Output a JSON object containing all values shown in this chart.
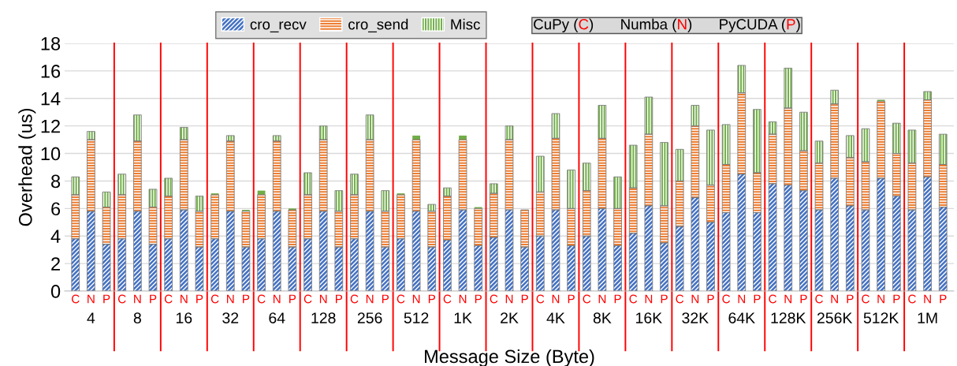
{
  "chart_data": {
    "type": "bar",
    "stacked": true,
    "xlabel": "Message Size (Byte)",
    "ylabel": "Overhead (us)",
    "categories": [
      "C",
      "N",
      "P",
      "C",
      "N",
      "P",
      "C",
      "N",
      "P",
      "C",
      "N",
      "P",
      "C",
      "N",
      "P",
      "C",
      "N",
      "P",
      "C",
      "N",
      "P",
      "C",
      "N",
      "P",
      "C",
      "N",
      "P",
      "C",
      "N",
      "P",
      "C",
      "N",
      "P",
      "C",
      "N",
      "P",
      "C",
      "N",
      "P",
      "C",
      "N",
      "P",
      "C",
      "N",
      "P",
      "C",
      "N",
      "P",
      "C",
      "N",
      "P",
      "C",
      "N",
      "P",
      "C",
      "N",
      "P"
    ],
    "series": [
      {
        "name": "cro_recv",
        "color": "#4472c4",
        "values": [
          3.8,
          5.8,
          3.4,
          3.8,
          5.8,
          3.4,
          3.8,
          5.9,
          3.2,
          3.8,
          5.8,
          3.2,
          3.8,
          5.8,
          3.2,
          3.8,
          5.8,
          3.2,
          3.8,
          5.8,
          3.2,
          3.8,
          5.8,
          3.2,
          3.7,
          5.9,
          3.3,
          3.9,
          5.9,
          3.2,
          4.0,
          5.9,
          3.3,
          4.0,
          6.0,
          3.3,
          4.2,
          6.2,
          3.5,
          4.7,
          6.8,
          5.0,
          5.7,
          8.5,
          5.7,
          7.8,
          7.7,
          7.3,
          5.9,
          8.2,
          6.2,
          5.9,
          8.2,
          6.9,
          5.9,
          8.3,
          6.1
        ]
      },
      {
        "name": "cro_send",
        "color": "#ed7d31",
        "values": [
          3.2,
          5.2,
          2.7,
          3.2,
          5.1,
          2.7,
          3.1,
          5.1,
          2.6,
          3.2,
          5.1,
          2.6,
          3.2,
          5.1,
          2.7,
          3.2,
          5.2,
          2.6,
          3.2,
          5.2,
          2.6,
          3.2,
          5.2,
          2.6,
          3.2,
          5.1,
          2.7,
          3.2,
          5.1,
          2.7,
          3.2,
          5.2,
          2.7,
          3.3,
          5.1,
          2.7,
          3.3,
          5.2,
          2.7,
          3.3,
          5.2,
          2.7,
          3.5,
          5.9,
          2.9,
          3.6,
          5.6,
          2.9,
          3.4,
          5.4,
          3.5,
          3.5,
          5.6,
          3.1,
          3.4,
          5.6,
          3.1
        ]
      },
      {
        "name": "Misc",
        "color": "#70ad47",
        "values": [
          1.3,
          0.6,
          1.1,
          1.5,
          1.9,
          1.3,
          1.3,
          0.9,
          1.1,
          0.1,
          0.4,
          0.1,
          0.3,
          0.4,
          0.1,
          1.6,
          1.0,
          1.5,
          1.5,
          1.8,
          1.5,
          0.1,
          0.3,
          0.5,
          0.6,
          0.3,
          0.1,
          0.7,
          1.0,
          null,
          2.6,
          1.8,
          2.8,
          2.0,
          2.4,
          2.3,
          3.1,
          2.7,
          4.6,
          2.3,
          1.5,
          4.0,
          2.9,
          2.0,
          4.6,
          0.9,
          2.9,
          2.8,
          1.6,
          1.0,
          1.6,
          2.4,
          0.1,
          2.2,
          2.4,
          0.6,
          2.2
        ]
      }
    ],
    "ylim": [
      0,
      18
    ],
    "yticks": [
      0,
      2,
      4,
      6,
      8,
      10,
      12,
      14,
      16,
      18
    ],
    "grid": "y",
    "legend": "top",
    "annotations": [
      "4",
      "8",
      "16",
      "32",
      "64",
      "128",
      "256",
      "512",
      "1K",
      "2K",
      "4K",
      "8K",
      "16K",
      "32K",
      "64K",
      "128K",
      "256K",
      "512K",
      "1M",
      "CuPy (C)",
      "Numba (N)",
      "PyCUDA (P)"
    ]
  }
}
